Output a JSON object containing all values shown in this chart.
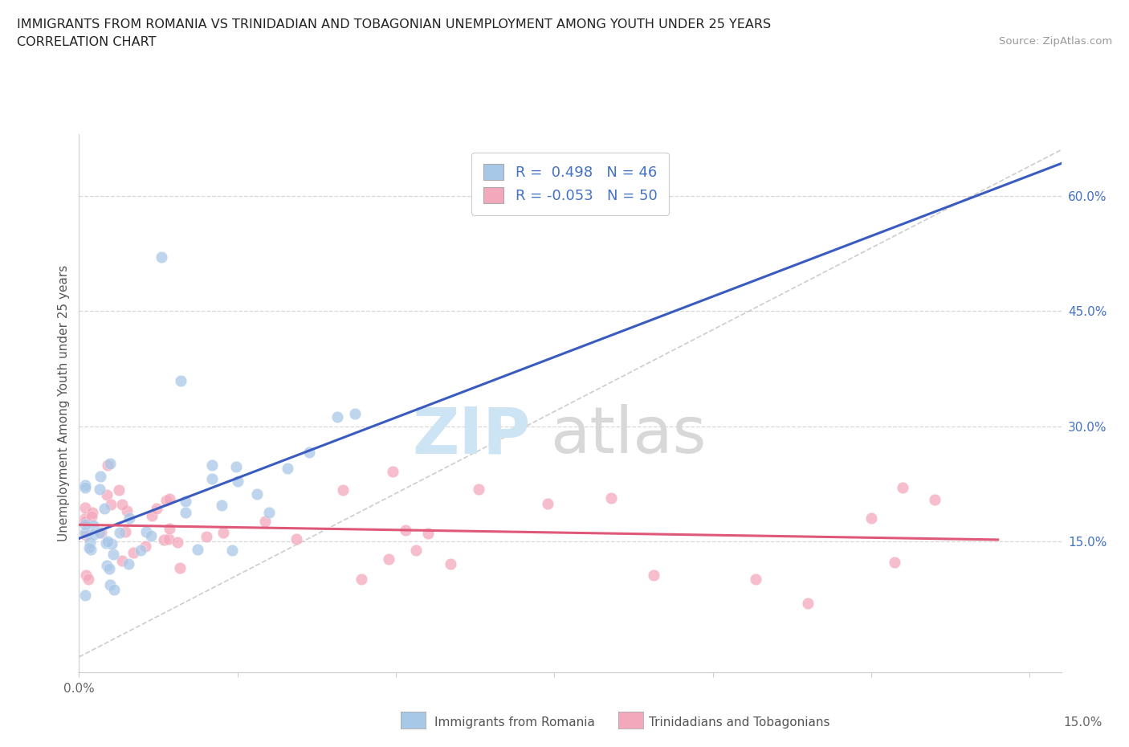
{
  "title_line1": "IMMIGRANTS FROM ROMANIA VS TRINIDADIAN AND TOBAGONIAN UNEMPLOYMENT AMONG YOUTH UNDER 25 YEARS",
  "title_line2": "CORRELATION CHART",
  "source_text": "Source: ZipAtlas.com",
  "ylabel": "Unemployment Among Youth under 25 years",
  "xlim": [
    0.0,
    0.155
  ],
  "ylim": [
    -0.02,
    0.68
  ],
  "romania_R": 0.498,
  "romania_N": 46,
  "trinidad_R": -0.053,
  "trinidad_N": 50,
  "romania_color": "#a8c8e8",
  "trinidad_color": "#f4a8bc",
  "romania_line_color": "#3a5bbf",
  "trinidad_line_color": "#e05878",
  "trendline_color": "#b8b8b8",
  "grid_color": "#d8d8d8",
  "watermark_zip_color": "#cce4f4",
  "watermark_atlas_color": "#d8d8d8"
}
